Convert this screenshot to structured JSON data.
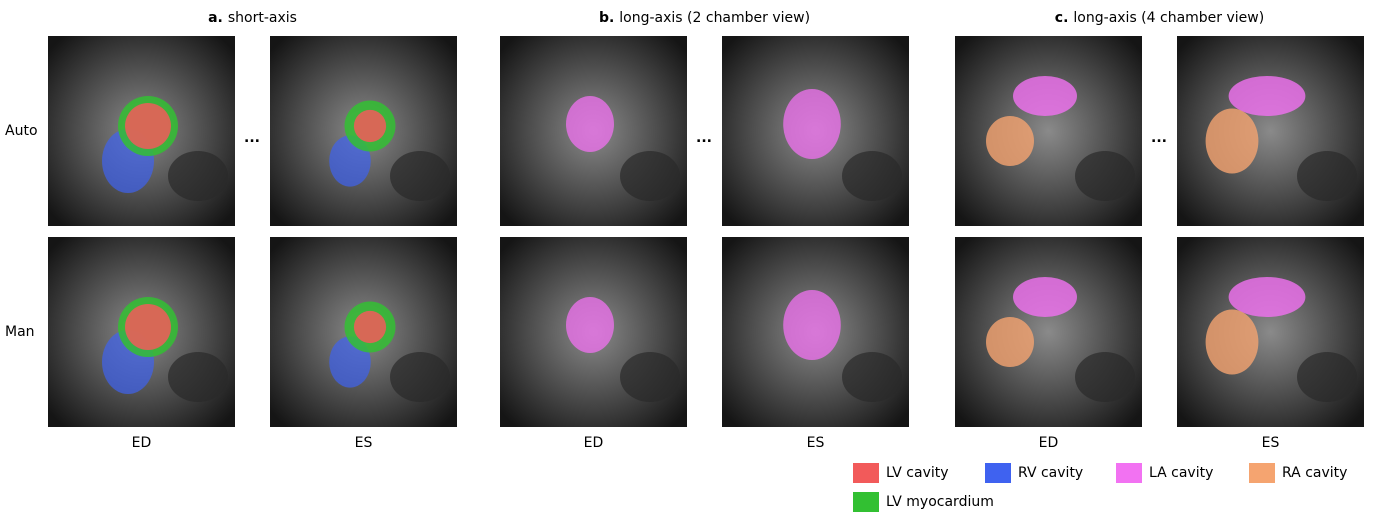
{
  "panels": [
    {
      "label": "a.",
      "title": "short-axis",
      "columns": [
        "ED",
        "ES"
      ]
    },
    {
      "label": "b.",
      "title": "long-axis (2 chamber view)",
      "columns": [
        "ED",
        "ES"
      ]
    },
    {
      "label": "c.",
      "title": "long-axis (4 chamber view)",
      "columns": [
        "ED",
        "ES"
      ]
    }
  ],
  "row_labels": [
    "Auto",
    "Man"
  ],
  "separator": "...",
  "legend": [
    {
      "name": "LV cavity",
      "color": "#f25a5a"
    },
    {
      "name": "RV cavity",
      "color": "#3f62f0"
    },
    {
      "name": "LA cavity",
      "color": "#f272f2"
    },
    {
      "name": "RA cavity",
      "color": "#f5a470"
    },
    {
      "name": "LV myocardium",
      "color": "#32c032"
    }
  ]
}
